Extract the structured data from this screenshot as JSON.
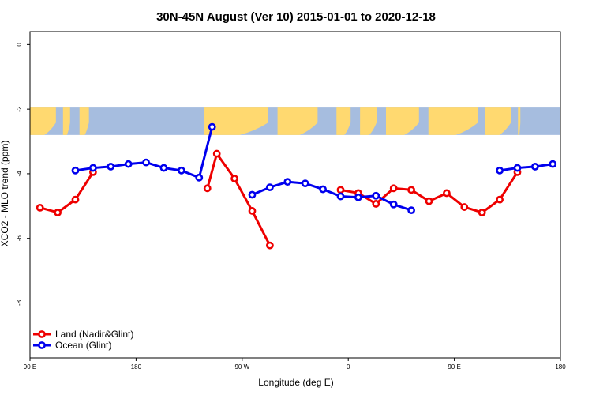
{
  "chart_data": {
    "type": "line",
    "title": "30N-45N August (Ver 10)   2015-01-01 to 2020-12-18",
    "xlabel": "Longitude (deg E)",
    "ylabel": "XCO2 - MLO trend (ppm)",
    "xlim": [
      90,
      540
    ],
    "ylim": [
      -9.7,
      0.4
    ],
    "x_ticks": [
      {
        "value": 90,
        "label": "90 E"
      },
      {
        "value": 180,
        "label": "180"
      },
      {
        "value": 270,
        "label": "90 W"
      },
      {
        "value": 360,
        "label": "0"
      },
      {
        "value": 450,
        "label": "90 E"
      },
      {
        "value": 540,
        "label": "180"
      }
    ],
    "y_ticks": [
      {
        "value": 0,
        "label": "0"
      },
      {
        "value": -2,
        "label": "-2"
      },
      {
        "value": -4,
        "label": "-4"
      },
      {
        "value": -6,
        "label": "-6"
      },
      {
        "value": -8,
        "label": "-8"
      }
    ],
    "map_band": {
      "y_top": -1.95,
      "y_bottom": -2.8,
      "land_color": "#FFD970",
      "ocean_color": "#A6BDDF"
    },
    "legend_position": "bottom-left",
    "series": [
      {
        "name": "Land (Nadir&Glint)",
        "color": "#EE0000",
        "segments": [
          [
            [
              98.5,
              -5.05
            ],
            [
              113.5,
              -5.2
            ],
            [
              128.5,
              -4.8
            ],
            [
              143.5,
              -3.95
            ]
          ],
          [
            [
              240.5,
              -4.45
            ],
            [
              248.5,
              -3.38
            ],
            [
              263.5,
              -4.15
            ],
            [
              278.5,
              -5.15
            ],
            [
              293.5,
              -6.22
            ]
          ],
          [
            [
              353.5,
              -4.5
            ],
            [
              368.5,
              -4.6
            ],
            [
              383.5,
              -4.93
            ],
            [
              398.5,
              -4.45
            ],
            [
              413.5,
              -4.5
            ],
            [
              428.5,
              -4.85
            ],
            [
              443.5,
              -4.6
            ],
            [
              458.5,
              -5.03
            ],
            [
              473.5,
              -5.2
            ],
            [
              488.5,
              -4.8
            ],
            [
              503.5,
              -3.95
            ]
          ]
        ]
      },
      {
        "name": "Ocean (Glint)",
        "color": "#0000EE",
        "segments": [
          [
            [
              128.5,
              -3.9
            ],
            [
              143.5,
              -3.82
            ],
            [
              158.5,
              -3.78
            ],
            [
              173.5,
              -3.7
            ],
            [
              188.5,
              -3.65
            ],
            [
              203.5,
              -3.82
            ],
            [
              218.5,
              -3.9
            ],
            [
              233.5,
              -4.12
            ],
            [
              244.5,
              -2.55
            ]
          ],
          [
            [
              278.5,
              -4.65
            ],
            [
              293.5,
              -4.42
            ],
            [
              308.5,
              -4.25
            ],
            [
              323.5,
              -4.3
            ],
            [
              338.5,
              -4.48
            ],
            [
              353.5,
              -4.7
            ],
            [
              368.5,
              -4.73
            ],
            [
              383.5,
              -4.68
            ],
            [
              398.5,
              -4.95
            ],
            [
              413.5,
              -5.13
            ]
          ],
          [
            [
              488.5,
              -3.9
            ],
            [
              503.5,
              -3.82
            ],
            [
              518.5,
              -3.78
            ],
            [
              533.5,
              -3.7
            ]
          ]
        ]
      }
    ]
  }
}
